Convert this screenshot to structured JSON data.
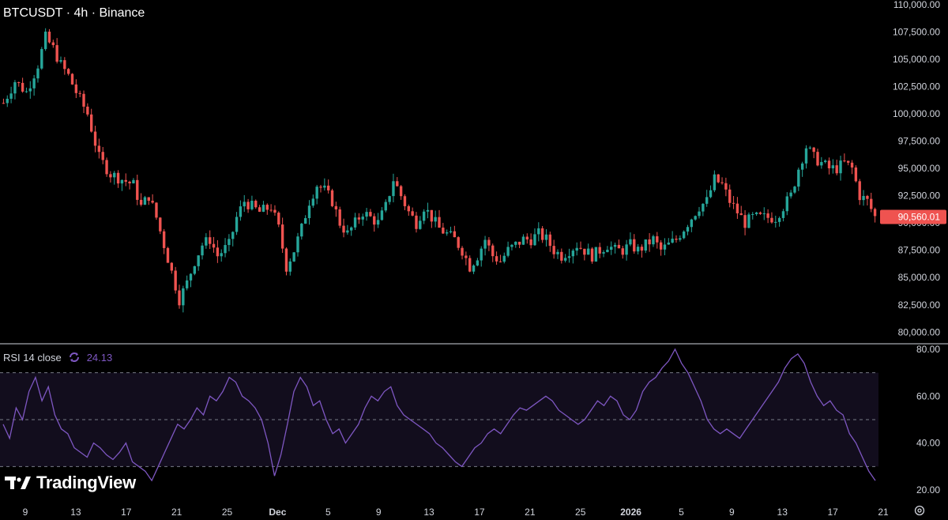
{
  "header": {
    "title": "BTCUSDT · 4h · Binance"
  },
  "rsi_legend": {
    "label": "RSI 14 close",
    "value": "24.13"
  },
  "branding": {
    "logo_text": "TradingView"
  },
  "colors": {
    "up": "#26a69a",
    "down": "#ef5350",
    "rsi_line": "#7e57c2",
    "rsi_band": "#120d1d",
    "background": "#000000",
    "axis_text": "#d1d4dc",
    "price_label_bg": "#ef5350"
  },
  "icons": {
    "rsi_toggle": "cycle-icon",
    "settings": "gear-icon"
  },
  "chart_data": [
    {
      "type": "candlestick",
      "title": "BTCUSDT · 4h · Binance",
      "ylim": [
        78500,
        110000
      ],
      "y_ticks": [
        "80,000.00",
        "82,500.00",
        "85,000.00",
        "87,500.00",
        "90,000.00",
        "92,500.00",
        "95,000.00",
        "97,500.00",
        "100,000.00",
        "102,500.00",
        "105,000.00",
        "107,500.00",
        "110,000.00"
      ],
      "x_ticks": [
        "9",
        "13",
        "17",
        "21",
        "25",
        "Dec",
        "5",
        "9",
        "13",
        "17",
        "21",
        "25",
        "2026",
        "5",
        "9",
        "13",
        "17",
        "21"
      ],
      "last_price": "90,560.01",
      "close_path": [
        [
          0,
          101000
        ],
        [
          3,
          103000
        ],
        [
          6,
          102000
        ],
        [
          9,
          104500
        ],
        [
          11,
          107000
        ],
        [
          13,
          106000
        ],
        [
          15,
          104500
        ],
        [
          17,
          103500
        ],
        [
          19,
          102000
        ],
        [
          22,
          100000
        ],
        [
          25,
          96000
        ],
        [
          28,
          94500
        ],
        [
          31,
          94000
        ],
        [
          34,
          93500
        ],
        [
          36,
          91500
        ],
        [
          38,
          92500
        ],
        [
          40,
          90500
        ],
        [
          42,
          88000
        ],
        [
          44,
          85500
        ],
        [
          46,
          83000
        ],
        [
          48,
          84500
        ],
        [
          50,
          86500
        ],
        [
          52,
          88000
        ],
        [
          54,
          88500
        ],
        [
          56,
          87000
        ],
        [
          59,
          88000
        ],
        [
          61,
          90500
        ],
        [
          63,
          92000
        ],
        [
          65,
          91500
        ],
        [
          67,
          91000
        ],
        [
          70,
          91500
        ],
        [
          72,
          89500
        ],
        [
          74,
          86000
        ],
        [
          76,
          87500
        ],
        [
          78,
          89500
        ],
        [
          80,
          92000
        ],
        [
          82,
          93500
        ],
        [
          84,
          93000
        ],
        [
          86,
          92000
        ],
        [
          88,
          90000
        ],
        [
          90,
          89000
        ],
        [
          92,
          90000
        ],
        [
          94,
          91000
        ],
        [
          96,
          90500
        ],
        [
          98,
          90000
        ],
        [
          100,
          91500
        ],
        [
          102,
          94000
        ],
        [
          104,
          92500
        ],
        [
          106,
          91000
        ],
        [
          108,
          90000
        ],
        [
          110,
          91500
        ],
        [
          112,
          90500
        ],
        [
          114,
          89500
        ],
        [
          116,
          89000
        ],
        [
          118,
          88500
        ],
        [
          120,
          87500
        ],
        [
          122,
          86000
        ],
        [
          124,
          87000
        ],
        [
          126,
          88500
        ],
        [
          128,
          87000
        ],
        [
          130,
          86500
        ],
        [
          132,
          87500
        ],
        [
          134,
          88000
        ],
        [
          136,
          88500
        ],
        [
          138,
          88500
        ],
        [
          140,
          89000
        ],
        [
          142,
          88500
        ],
        [
          144,
          87500
        ],
        [
          146,
          87000
        ],
        [
          148,
          87500
        ],
        [
          150,
          88000
        ],
        [
          152,
          87500
        ],
        [
          154,
          87000
        ],
        [
          156,
          87500
        ],
        [
          158,
          88000
        ],
        [
          160,
          87500
        ],
        [
          162,
          87500
        ],
        [
          164,
          88000
        ],
        [
          166,
          87500
        ],
        [
          168,
          88000
        ],
        [
          170,
          88500
        ],
        [
          172,
          87500
        ],
        [
          174,
          88000
        ],
        [
          176,
          88500
        ],
        [
          178,
          89500
        ],
        [
          180,
          90500
        ],
        [
          182,
          91500
        ],
        [
          184,
          92000
        ],
        [
          186,
          94000
        ],
        [
          188,
          93500
        ],
        [
          190,
          92000
        ],
        [
          192,
          91000
        ],
        [
          194,
          90000
        ],
        [
          196,
          90500
        ],
        [
          198,
          90500
        ],
        [
          200,
          90500
        ],
        [
          202,
          90500
        ],
        [
          204,
          91500
        ],
        [
          206,
          92500
        ],
        [
          208,
          95000
        ],
        [
          210,
          97000
        ],
        [
          212,
          96000
        ],
        [
          214,
          95500
        ],
        [
          216,
          95000
        ],
        [
          218,
          95000
        ],
        [
          220,
          95500
        ],
        [
          222,
          95000
        ],
        [
          224,
          92500
        ],
        [
          226,
          92000
        ],
        [
          228,
          90560
        ]
      ]
    },
    {
      "type": "line",
      "title": "RSI 14 close",
      "ylim": [
        20,
        82
      ],
      "y_ticks": [
        "20.00",
        "40.00",
        "60.00",
        "80.00"
      ],
      "levels": [
        30,
        50,
        70
      ],
      "x_ticks": [
        "9",
        "13",
        "17",
        "21",
        "25",
        "Dec",
        "5",
        "9",
        "13",
        "17",
        "21",
        "25",
        "2026",
        "5",
        "9",
        "13",
        "17",
        "21"
      ],
      "last_value": "24.13",
      "series": [
        {
          "values": [
            48,
            42,
            55,
            50,
            62,
            68,
            58,
            64,
            52,
            46,
            44,
            38,
            36,
            34,
            40,
            38,
            35,
            33,
            36,
            40,
            32,
            30,
            28,
            24,
            30,
            36,
            42,
            48,
            46,
            50,
            55,
            52,
            60,
            58,
            62,
            68,
            66,
            60,
            58,
            55,
            50,
            40,
            26,
            35,
            48,
            62,
            68,
            64,
            56,
            58,
            50,
            44,
            46,
            40,
            44,
            48,
            55,
            60,
            58,
            62,
            64,
            56,
            52,
            50,
            48,
            46,
            44,
            40,
            38,
            35,
            32,
            30,
            34,
            38,
            40,
            44,
            46,
            44,
            48,
            52,
            55,
            54,
            56,
            58,
            60,
            58,
            54,
            52,
            50,
            48,
            50,
            54,
            58,
            56,
            60,
            58,
            52,
            50,
            54,
            62,
            66,
            68,
            72,
            75,
            80,
            74,
            70,
            64,
            58,
            50,
            46,
            44,
            46,
            44,
            42,
            46,
            50,
            54,
            58,
            62,
            66,
            72,
            76,
            78,
            74,
            66,
            60,
            56,
            58,
            54,
            52,
            44,
            40,
            34,
            28,
            24
          ]
        }
      ]
    }
  ]
}
